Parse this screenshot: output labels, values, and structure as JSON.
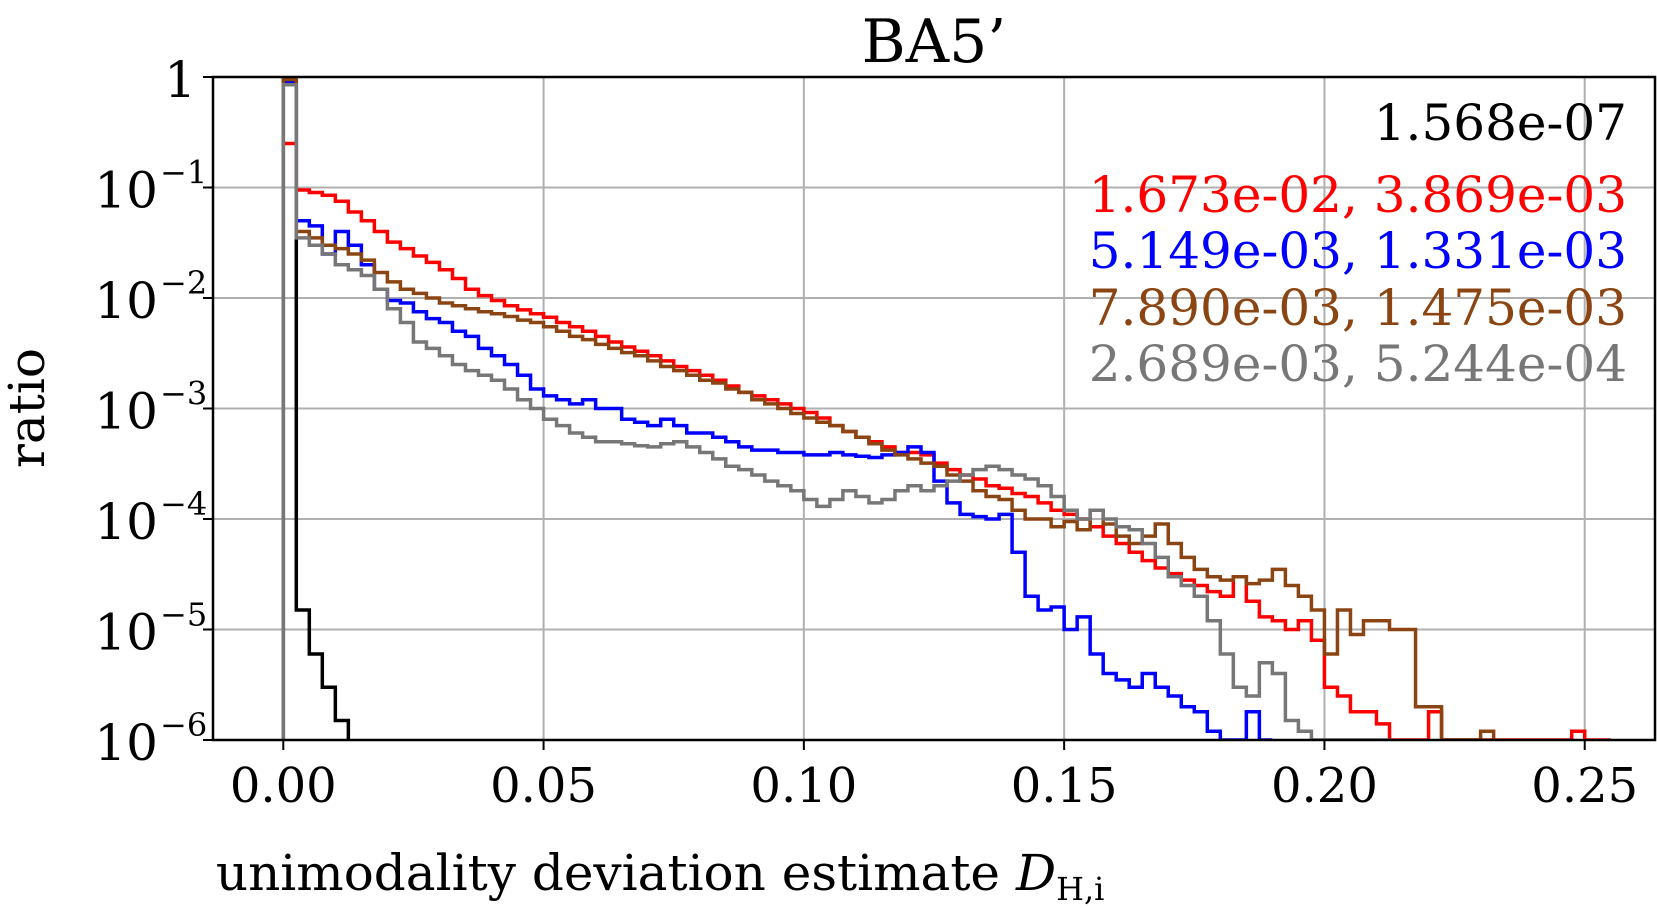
{
  "chart_data": {
    "type": "histogram",
    "title": "BA5’",
    "xlabel": "unimodality deviation estimate",
    "xlabel_symbol": "D",
    "xlabel_subscript": "H,i",
    "ylabel": "ratio",
    "xlim": [
      -0.0135,
      0.2635
    ],
    "ylim": [
      1e-06,
      1
    ],
    "yscale": "log",
    "grid": true,
    "bin_width": 0.0025,
    "x_ticks": [
      {
        "value": 0.0,
        "label": "0.00"
      },
      {
        "value": 0.05,
        "label": "0.05"
      },
      {
        "value": 0.1,
        "label": "0.10"
      },
      {
        "value": 0.15,
        "label": "0.15"
      },
      {
        "value": 0.2,
        "label": "0.20"
      },
      {
        "value": 0.25,
        "label": "0.25"
      }
    ],
    "y_ticks": [
      {
        "value": 1,
        "base": "1",
        "exp": ""
      },
      {
        "value": 0.1,
        "base": "10",
        "exp": "−1"
      },
      {
        "value": 0.01,
        "base": "10",
        "exp": "−2"
      },
      {
        "value": 0.001,
        "base": "10",
        "exp": "−3"
      },
      {
        "value": 0.0001,
        "base": "10",
        "exp": "−4"
      },
      {
        "value": 1e-05,
        "base": "10",
        "exp": "−5"
      },
      {
        "value": 1e-06,
        "base": "10",
        "exp": "−6"
      }
    ],
    "legend_position": "top-right",
    "series": [
      {
        "label": "1.568e-07",
        "color": "#000000",
        "x": [
          0.0,
          0.0025,
          0.005,
          0.0075,
          0.01
        ],
        "y": [
          1.0,
          1.5e-05,
          6e-06,
          3e-06,
          1.5e-06
        ]
      },
      {
        "label": "1.673e-02, 3.869e-03",
        "color": "#ff0000",
        "x": [
          0.0,
          0.0025,
          0.005,
          0.0075,
          0.01,
          0.0125,
          0.015,
          0.0175,
          0.02,
          0.0225,
          0.025,
          0.0275,
          0.03,
          0.0325,
          0.035,
          0.0375,
          0.04,
          0.0425,
          0.045,
          0.0475,
          0.05,
          0.0525,
          0.055,
          0.0575,
          0.06,
          0.0625,
          0.065,
          0.0675,
          0.07,
          0.0725,
          0.075,
          0.0775,
          0.08,
          0.0825,
          0.085,
          0.0875,
          0.09,
          0.0925,
          0.095,
          0.0975,
          0.1,
          0.1025,
          0.105,
          0.1075,
          0.11,
          0.1125,
          0.115,
          0.1175,
          0.12,
          0.1225,
          0.125,
          0.1275,
          0.13,
          0.1325,
          0.135,
          0.1375,
          0.14,
          0.1425,
          0.145,
          0.1475,
          0.15,
          0.1525,
          0.155,
          0.1575,
          0.16,
          0.1625,
          0.165,
          0.1675,
          0.17,
          0.1725,
          0.175,
          0.1775,
          0.18,
          0.1825,
          0.185,
          0.1875,
          0.19,
          0.1925,
          0.195,
          0.1975,
          0.2,
          0.2025,
          0.205,
          0.2075,
          0.21,
          0.2125,
          0.215,
          0.2175,
          0.22,
          0.2225,
          0.225,
          0.2275,
          0.23,
          0.2325,
          0.235,
          0.2375,
          0.24,
          0.2425,
          0.245,
          0.2475,
          0.25,
          0.2525
        ],
        "y": [
          0.25,
          0.095,
          0.09,
          0.085,
          0.075,
          0.06,
          0.05,
          0.04,
          0.032,
          0.028,
          0.024,
          0.021,
          0.018,
          0.015,
          0.012,
          0.0105,
          0.0095,
          0.0085,
          0.0078,
          0.0072,
          0.0067,
          0.006,
          0.0055,
          0.005,
          0.0045,
          0.004,
          0.0036,
          0.0033,
          0.003,
          0.0027,
          0.0024,
          0.0022,
          0.002,
          0.0018,
          0.0016,
          0.0014,
          0.0013,
          0.0012,
          0.0011,
          0.001,
          0.00092,
          0.00082,
          0.0007,
          0.00062,
          0.00055,
          0.0005,
          0.00045,
          0.0004,
          0.0004,
          0.00038,
          0.00032,
          0.00028,
          0.00025,
          0.00023,
          0.0002,
          0.00019,
          0.00017,
          0.00016,
          0.00014,
          0.00012,
          0.00011,
          0.0001,
          8.5e-05,
          7e-05,
          6e-05,
          5e-05,
          4.2e-05,
          3.6e-05,
          3.2e-05,
          2.8e-05,
          2.5e-05,
          2.2e-05,
          2e-05,
          3e-05,
          1.8e-05,
          1.3e-05,
          1.2e-05,
          1e-05,
          1.2e-05,
          8e-06,
          3e-06,
          2.5e-06,
          1.8e-06,
          1.8e-06,
          1.4e-06,
          1e-06,
          1e-06,
          1e-06,
          1.8e-06,
          1e-06,
          1e-06,
          1e-06,
          1e-06,
          1e-06,
          1e-06,
          1e-06,
          1e-06,
          1e-06,
          1e-06,
          1.2e-06,
          1e-06,
          1e-06
        ]
      },
      {
        "label": "5.149e-03, 1.331e-03",
        "color": "#0000ff",
        "x": [
          0.0,
          0.0025,
          0.005,
          0.0075,
          0.01,
          0.0125,
          0.015,
          0.0175,
          0.02,
          0.0225,
          0.025,
          0.0275,
          0.03,
          0.0325,
          0.035,
          0.0375,
          0.04,
          0.0425,
          0.045,
          0.0475,
          0.05,
          0.0525,
          0.055,
          0.0575,
          0.06,
          0.0625,
          0.065,
          0.0675,
          0.07,
          0.0725,
          0.075,
          0.0775,
          0.08,
          0.0825,
          0.085,
          0.0875,
          0.09,
          0.0925,
          0.095,
          0.0975,
          0.1,
          0.1025,
          0.105,
          0.1075,
          0.11,
          0.1125,
          0.115,
          0.1175,
          0.12,
          0.1225,
          0.125,
          0.1275,
          0.13,
          0.1325,
          0.135,
          0.1375,
          0.14,
          0.1425,
          0.145,
          0.1475,
          0.15,
          0.1525,
          0.155,
          0.1575,
          0.16,
          0.1625,
          0.165,
          0.1675,
          0.17,
          0.1725,
          0.175,
          0.1775,
          0.18,
          0.1825,
          0.185,
          0.1875
        ],
        "y": [
          0.9,
          0.05,
          0.045,
          0.025,
          0.04,
          0.03,
          0.02,
          0.012,
          0.0095,
          0.009,
          0.0075,
          0.0065,
          0.006,
          0.005,
          0.0045,
          0.0035,
          0.003,
          0.0025,
          0.002,
          0.0015,
          0.0013,
          0.0012,
          0.0011,
          0.0012,
          0.001,
          0.001,
          0.0008,
          0.00075,
          0.0007,
          0.0008,
          0.0007,
          0.0006,
          0.0006,
          0.00055,
          0.0005,
          0.00045,
          0.00042,
          0.00042,
          0.0004,
          0.0004,
          0.00038,
          0.00038,
          0.0004,
          0.00038,
          0.00037,
          0.00036,
          0.00038,
          0.0004,
          0.00045,
          0.0004,
          0.00022,
          0.00014,
          0.00011,
          0.000105,
          0.0001,
          0.00011,
          5e-05,
          2e-05,
          1.5e-05,
          1.6e-05,
          1e-05,
          1.3e-05,
          6e-06,
          4e-06,
          3.5e-06,
          3e-06,
          4e-06,
          3e-06,
          2.5e-06,
          2e-06,
          1.8e-06,
          1.2e-06,
          1e-06,
          1e-06,
          1.8e-06,
          1e-06
        ]
      },
      {
        "label": "7.890e-03, 1.475e-03",
        "color": "#8b4513",
        "x": [
          0.0,
          0.0025,
          0.005,
          0.0075,
          0.01,
          0.0125,
          0.015,
          0.0175,
          0.02,
          0.0225,
          0.025,
          0.0275,
          0.03,
          0.0325,
          0.035,
          0.0375,
          0.04,
          0.0425,
          0.045,
          0.0475,
          0.05,
          0.0525,
          0.055,
          0.0575,
          0.06,
          0.0625,
          0.065,
          0.0675,
          0.07,
          0.0725,
          0.075,
          0.0775,
          0.08,
          0.0825,
          0.085,
          0.0875,
          0.09,
          0.0925,
          0.095,
          0.0975,
          0.1,
          0.1025,
          0.105,
          0.1075,
          0.11,
          0.1125,
          0.115,
          0.1175,
          0.12,
          0.1225,
          0.125,
          0.1275,
          0.13,
          0.1325,
          0.135,
          0.1375,
          0.14,
          0.1425,
          0.145,
          0.1475,
          0.15,
          0.1525,
          0.155,
          0.1575,
          0.16,
          0.1625,
          0.165,
          0.1675,
          0.17,
          0.1725,
          0.175,
          0.1775,
          0.18,
          0.1825,
          0.185,
          0.1875,
          0.19,
          0.1925,
          0.195,
          0.1975,
          0.2,
          0.2025,
          0.205,
          0.2075,
          0.21,
          0.2125,
          0.215,
          0.2175,
          0.22,
          0.2225,
          0.225,
          0.2275,
          0.23
        ],
        "y": [
          0.95,
          0.04,
          0.035,
          0.03,
          0.028,
          0.025,
          0.022,
          0.017,
          0.014,
          0.012,
          0.011,
          0.01,
          0.009,
          0.0085,
          0.008,
          0.0075,
          0.0072,
          0.0068,
          0.0063,
          0.006,
          0.0055,
          0.005,
          0.0045,
          0.0042,
          0.0038,
          0.0035,
          0.0032,
          0.003,
          0.0027,
          0.0024,
          0.0022,
          0.002,
          0.0018,
          0.0017,
          0.0015,
          0.0014,
          0.0012,
          0.0011,
          0.001,
          0.0009,
          0.00082,
          0.00075,
          0.0007,
          0.00062,
          0.00055,
          0.00048,
          0.00042,
          0.00038,
          0.00035,
          0.00032,
          0.0003,
          0.00025,
          0.00022,
          0.00018,
          0.00016,
          0.00015,
          0.00012,
          0.0001,
          0.0001,
          8.5e-05,
          9.5e-05,
          8e-05,
          0.00012,
          9e-05,
          7e-05,
          6e-05,
          7e-05,
          9e-05,
          6e-05,
          4.5e-05,
          3.5e-05,
          3e-05,
          2.8e-05,
          3e-05,
          2.6e-05,
          2.8e-05,
          3.5e-05,
          2.5e-05,
          2e-05,
          1.5e-05,
          6e-06,
          1.5e-05,
          9e-06,
          1.2e-05,
          1.2e-05,
          1e-05,
          1e-05,
          2e-06,
          2e-06,
          1e-06,
          1e-06,
          1e-06,
          1.2e-06
        ]
      },
      {
        "label": "2.689e-03, 5.244e-04",
        "color": "#777777",
        "x": [
          0.0,
          0.0025,
          0.005,
          0.0075,
          0.01,
          0.0125,
          0.015,
          0.0175,
          0.02,
          0.0225,
          0.025,
          0.0275,
          0.03,
          0.0325,
          0.035,
          0.0375,
          0.04,
          0.0425,
          0.045,
          0.0475,
          0.05,
          0.0525,
          0.055,
          0.0575,
          0.06,
          0.0625,
          0.065,
          0.0675,
          0.07,
          0.0725,
          0.075,
          0.0775,
          0.08,
          0.0825,
          0.085,
          0.0875,
          0.09,
          0.0925,
          0.095,
          0.0975,
          0.1,
          0.1025,
          0.105,
          0.1075,
          0.11,
          0.1125,
          0.115,
          0.1175,
          0.12,
          0.1225,
          0.125,
          0.1275,
          0.13,
          0.1325,
          0.135,
          0.1375,
          0.14,
          0.1425,
          0.145,
          0.1475,
          0.15,
          0.1525,
          0.155,
          0.1575,
          0.16,
          0.1625,
          0.165,
          0.1675,
          0.17,
          0.1725,
          0.175,
          0.1775,
          0.18,
          0.1825,
          0.185,
          0.1875,
          0.19,
          0.1925,
          0.195,
          0.1975,
          0.2,
          0.2025,
          0.205,
          0.2075,
          0.21
        ],
        "y": [
          0.85,
          0.035,
          0.03,
          0.025,
          0.02,
          0.018,
          0.016,
          0.012,
          0.008,
          0.006,
          0.004,
          0.0035,
          0.003,
          0.0025,
          0.0022,
          0.002,
          0.0018,
          0.0015,
          0.0012,
          0.001,
          0.0008,
          0.0007,
          0.0006,
          0.00055,
          0.0005,
          0.0005,
          0.00048,
          0.00046,
          0.00045,
          0.00048,
          0.0005,
          0.00045,
          0.0004,
          0.00035,
          0.0003,
          0.00028,
          0.00025,
          0.00022,
          0.0002,
          0.00018,
          0.00015,
          0.00013,
          0.00015,
          0.00018,
          0.00016,
          0.00014,
          0.00015,
          0.00018,
          0.0002,
          0.00018,
          0.0002,
          0.00022,
          0.00025,
          0.00028,
          0.0003,
          0.00028,
          0.00025,
          0.00023,
          0.0002,
          0.00016,
          0.00012,
          0.0001,
          0.00012,
          0.0001,
          8.5e-05,
          8e-05,
          6e-05,
          4.5e-05,
          3e-05,
          2.5e-05,
          2e-05,
          1.2e-05,
          6e-06,
          3e-06,
          2.5e-06,
          5e-06,
          4e-06,
          1.5e-06,
          1.2e-06,
          1e-06,
          1e-06,
          1e-06,
          1e-06,
          1e-06,
          1e-06
        ]
      }
    ]
  }
}
